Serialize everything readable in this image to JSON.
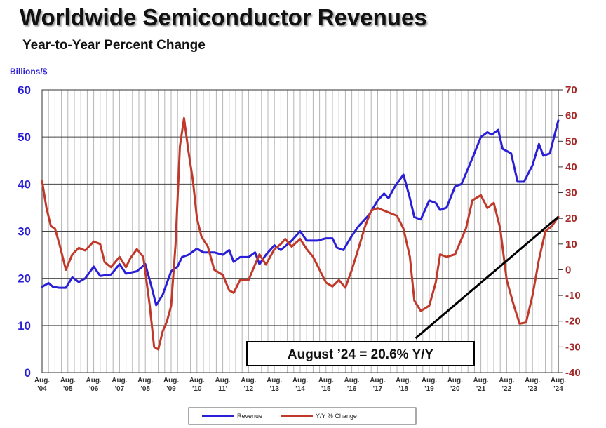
{
  "title": "Worldwide Semiconductor Revenues",
  "subtitle": "Year-to-Year Percent Change",
  "chart_data": {
    "type": "line",
    "ylabel_left": "Billions/$",
    "y_left_ticks": [
      "0",
      "10",
      "20",
      "30",
      "40",
      "50",
      "60"
    ],
    "y_right_ticks": [
      "-40",
      "-30",
      "-20",
      "-10",
      "0",
      "10",
      "20",
      "30",
      "40",
      "50",
      "60",
      "70"
    ],
    "ylim_left": [
      0,
      60
    ],
    "ylim_right": [
      -40,
      70
    ],
    "x_tick_labels": [
      [
        "Aug.",
        "'04"
      ],
      [
        "Aug.",
        "'05"
      ],
      [
        "Aug.",
        "'06"
      ],
      [
        "Aug.",
        "'07"
      ],
      [
        "Aug.",
        "'08"
      ],
      [
        "Aug.",
        "'09"
      ],
      [
        "Aug.",
        "'10"
      ],
      [
        "Aug.",
        "11'"
      ],
      [
        "Aug.",
        "'12"
      ],
      [
        "Aug.",
        "'13"
      ],
      [
        "Aug.",
        "'14"
      ],
      [
        "Aug.",
        "'15"
      ],
      [
        "Aug.",
        "'16"
      ],
      [
        "Aug.",
        "'17"
      ],
      [
        "Aug.",
        "'18"
      ],
      [
        "Aug.",
        "'19"
      ],
      [
        "Aug.",
        "'20"
      ],
      [
        "Aug.",
        "'21"
      ],
      [
        "Aug.",
        "'22"
      ],
      [
        "Aug.",
        "'23"
      ],
      [
        "Aug.",
        "'24"
      ]
    ],
    "x_range": [
      2004.58,
      2024.58
    ],
    "grid": true,
    "legend_position": "bottom-center",
    "series": [
      {
        "name": "Revenue",
        "axis": "left",
        "color": "#2a1fd6",
        "points": [
          [
            2004.58,
            18.2
          ],
          [
            2004.83,
            19.0
          ],
          [
            2005.0,
            18.2
          ],
          [
            2005.25,
            18.0
          ],
          [
            2005.5,
            18.0
          ],
          [
            2005.75,
            20.2
          ],
          [
            2006.0,
            19.2
          ],
          [
            2006.25,
            20.0
          ],
          [
            2006.58,
            22.5
          ],
          [
            2006.83,
            20.5
          ],
          [
            2007.25,
            20.8
          ],
          [
            2007.58,
            23.0
          ],
          [
            2007.83,
            21.0
          ],
          [
            2008.25,
            21.5
          ],
          [
            2008.58,
            23.0
          ],
          [
            2008.83,
            18.0
          ],
          [
            2009.0,
            14.3
          ],
          [
            2009.25,
            16.5
          ],
          [
            2009.58,
            21.5
          ],
          [
            2009.83,
            22.5
          ],
          [
            2010.0,
            24.5
          ],
          [
            2010.25,
            25.0
          ],
          [
            2010.58,
            26.3
          ],
          [
            2010.83,
            25.5
          ],
          [
            2011.25,
            25.5
          ],
          [
            2011.58,
            25.0
          ],
          [
            2011.83,
            26.0
          ],
          [
            2012.0,
            23.5
          ],
          [
            2012.25,
            24.5
          ],
          [
            2012.58,
            24.5
          ],
          [
            2012.83,
            25.5
          ],
          [
            2013.0,
            23.0
          ],
          [
            2013.25,
            25.0
          ],
          [
            2013.58,
            27.0
          ],
          [
            2013.83,
            26.0
          ],
          [
            2014.25,
            28.0
          ],
          [
            2014.58,
            30.0
          ],
          [
            2014.83,
            28.0
          ],
          [
            2015.25,
            28.0
          ],
          [
            2015.58,
            28.5
          ],
          [
            2015.83,
            28.5
          ],
          [
            2016.0,
            26.5
          ],
          [
            2016.25,
            26.0
          ],
          [
            2016.58,
            29.0
          ],
          [
            2016.83,
            31.0
          ],
          [
            2017.25,
            33.5
          ],
          [
            2017.58,
            36.5
          ],
          [
            2017.83,
            38.0
          ],
          [
            2018.0,
            37.0
          ],
          [
            2018.25,
            39.5
          ],
          [
            2018.58,
            42.0
          ],
          [
            2018.83,
            37.0
          ],
          [
            2019.0,
            33.0
          ],
          [
            2019.25,
            32.5
          ],
          [
            2019.58,
            36.5
          ],
          [
            2019.83,
            36.0
          ],
          [
            2020.0,
            34.5
          ],
          [
            2020.25,
            35.0
          ],
          [
            2020.58,
            39.5
          ],
          [
            2020.83,
            40.0
          ],
          [
            2021.25,
            45.5
          ],
          [
            2021.58,
            50.0
          ],
          [
            2021.83,
            51.0
          ],
          [
            2022.0,
            50.5
          ],
          [
            2022.25,
            51.5
          ],
          [
            2022.42,
            47.5
          ],
          [
            2022.75,
            46.5
          ],
          [
            2023.0,
            40.5
          ],
          [
            2023.25,
            40.5
          ],
          [
            2023.58,
            44.0
          ],
          [
            2023.83,
            48.5
          ],
          [
            2024.0,
            46.0
          ],
          [
            2024.25,
            46.5
          ],
          [
            2024.58,
            53.5
          ]
        ]
      },
      {
        "name": "Y/Y % Change",
        "axis": "right",
        "color": "#c0392b",
        "points": [
          [
            2004.58,
            34.5
          ],
          [
            2004.75,
            24.0
          ],
          [
            2004.92,
            17.0
          ],
          [
            2005.08,
            16.0
          ],
          [
            2005.25,
            10.0
          ],
          [
            2005.5,
            0.0
          ],
          [
            2005.75,
            6.0
          ],
          [
            2006.0,
            8.5
          ],
          [
            2006.25,
            7.5
          ],
          [
            2006.58,
            11.0
          ],
          [
            2006.83,
            10.0
          ],
          [
            2007.0,
            3.0
          ],
          [
            2007.25,
            1.0
          ],
          [
            2007.58,
            5.0
          ],
          [
            2007.83,
            1.0
          ],
          [
            2008.0,
            4.5
          ],
          [
            2008.25,
            8.0
          ],
          [
            2008.5,
            5.0
          ],
          [
            2008.75,
            -14.0
          ],
          [
            2008.92,
            -30.0
          ],
          [
            2009.08,
            -31.0
          ],
          [
            2009.25,
            -24.0
          ],
          [
            2009.42,
            -20.0
          ],
          [
            2009.58,
            -14.0
          ],
          [
            2009.75,
            10.0
          ],
          [
            2009.92,
            48.0
          ],
          [
            2010.08,
            59.0
          ],
          [
            2010.25,
            46.0
          ],
          [
            2010.42,
            35.0
          ],
          [
            2010.58,
            20.0
          ],
          [
            2010.75,
            13.0
          ],
          [
            2011.0,
            9.0
          ],
          [
            2011.25,
            0.0
          ],
          [
            2011.58,
            -2.0
          ],
          [
            2011.83,
            -8.0
          ],
          [
            2012.0,
            -9.0
          ],
          [
            2012.25,
            -4.0
          ],
          [
            2012.58,
            -4.0
          ],
          [
            2012.83,
            2.0
          ],
          [
            2013.0,
            6.0
          ],
          [
            2013.25,
            2.0
          ],
          [
            2013.58,
            8.0
          ],
          [
            2013.83,
            10.0
          ],
          [
            2014.0,
            12.0
          ],
          [
            2014.25,
            9.0
          ],
          [
            2014.58,
            12.0
          ],
          [
            2014.83,
            8.0
          ],
          [
            2015.08,
            5.0
          ],
          [
            2015.33,
            0.0
          ],
          [
            2015.58,
            -5.0
          ],
          [
            2015.83,
            -6.5
          ],
          [
            2016.08,
            -4.0
          ],
          [
            2016.33,
            -7.0
          ],
          [
            2016.58,
            0.0
          ],
          [
            2016.83,
            8.0
          ],
          [
            2017.08,
            16.5
          ],
          [
            2017.33,
            23.0
          ],
          [
            2017.58,
            24.0
          ],
          [
            2017.83,
            23.0
          ],
          [
            2018.08,
            22.0
          ],
          [
            2018.33,
            21.0
          ],
          [
            2018.58,
            16.0
          ],
          [
            2018.83,
            5.0
          ],
          [
            2019.0,
            -12.0
          ],
          [
            2019.25,
            -16.0
          ],
          [
            2019.58,
            -14.0
          ],
          [
            2019.83,
            -5.0
          ],
          [
            2020.0,
            6.0
          ],
          [
            2020.25,
            5.0
          ],
          [
            2020.58,
            6.0
          ],
          [
            2020.83,
            12.0
          ],
          [
            2021.0,
            16.0
          ],
          [
            2021.25,
            27.0
          ],
          [
            2021.58,
            29.0
          ],
          [
            2021.83,
            24.0
          ],
          [
            2022.08,
            26.0
          ],
          [
            2022.33,
            16.0
          ],
          [
            2022.58,
            -4.0
          ],
          [
            2022.83,
            -13.0
          ],
          [
            2023.08,
            -21.0
          ],
          [
            2023.33,
            -20.5
          ],
          [
            2023.58,
            -10.0
          ],
          [
            2023.83,
            4.0
          ],
          [
            2024.08,
            15.0
          ],
          [
            2024.33,
            17.0
          ],
          [
            2024.58,
            20.6
          ]
        ]
      }
    ],
    "annotation": "August ’24 = 20.6% Y/Y",
    "trend_line": {
      "from": [
        2019.0,
        -25.0
      ],
      "to": [
        2024.58,
        20.6
      ],
      "axis": "right"
    }
  }
}
